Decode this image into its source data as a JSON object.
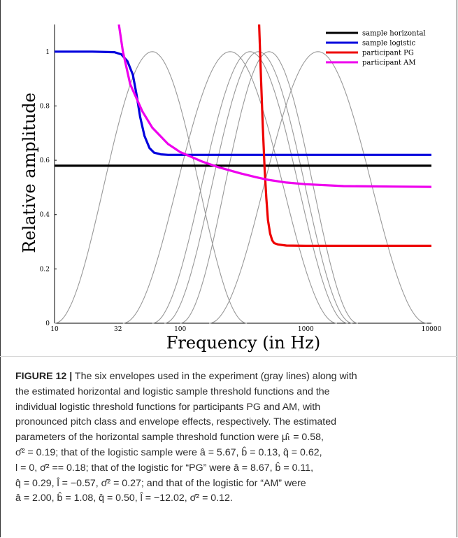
{
  "chart_data": {
    "type": "line",
    "xlabel": "Frequency (in Hz)",
    "ylabel": "Relative amplitude",
    "xscale": "log",
    "xlim": [
      10,
      10000
    ],
    "ylim": [
      0,
      1.1
    ],
    "x_ticks": [
      "10",
      "32",
      "100",
      "1000",
      "10000"
    ],
    "y_ticks": [
      "0",
      "0.2",
      "0.4",
      "0.6",
      "0.8",
      "1"
    ],
    "grid": false,
    "legend_position": "top-right",
    "envelope_color": "#999999",
    "envelopes": [
      {
        "peak_hz": 60,
        "low_hz": 10,
        "high_hz": 340
      },
      {
        "peak_hz": 250,
        "low_hz": 35,
        "high_hz": 1770
      },
      {
        "peak_hz": 360,
        "low_hz": 60,
        "high_hz": 2160
      },
      {
        "peak_hz": 420,
        "low_hz": 75,
        "high_hz": 2350
      },
      {
        "peak_hz": 510,
        "low_hz": 100,
        "high_hz": 2600
      },
      {
        "peak_hz": 1250,
        "low_hz": 170,
        "high_hz": 9200
      }
    ],
    "series": [
      {
        "name": "sample horizontal",
        "color": "#000000",
        "x": [
          10,
          10000
        ],
        "y": [
          0.58,
          0.58
        ]
      },
      {
        "name": "sample logistic",
        "color": "#0000dd",
        "x": [
          10,
          20,
          30,
          34,
          38,
          42,
          45,
          48,
          52,
          57,
          62,
          70,
          80,
          100,
          200,
          1000,
          10000
        ],
        "y": [
          1.0,
          1.0,
          0.998,
          0.99,
          0.965,
          0.915,
          0.84,
          0.76,
          0.69,
          0.645,
          0.628,
          0.622,
          0.62,
          0.62,
          0.62,
          0.62,
          0.62
        ]
      },
      {
        "name": "participant PG",
        "color": "#ee0000",
        "x": [
          425,
          440,
          455,
          470,
          485,
          500,
          520,
          540,
          560,
          600,
          700,
          1000,
          10000
        ],
        "y": [
          1.1,
          0.9,
          0.72,
          0.57,
          0.46,
          0.38,
          0.33,
          0.305,
          0.295,
          0.29,
          0.286,
          0.285,
          0.285
        ]
      },
      {
        "name": "participant AM",
        "color": "#ee00ee",
        "x": [
          32.5,
          35,
          40,
          50,
          60,
          80,
          100,
          150,
          200,
          300,
          400,
          500,
          700,
          1000,
          2000,
          5000,
          10000
        ],
        "y": [
          1.1,
          1.0,
          0.88,
          0.78,
          0.72,
          0.66,
          0.63,
          0.595,
          0.575,
          0.552,
          0.538,
          0.528,
          0.518,
          0.512,
          0.505,
          0.503,
          0.502
        ]
      }
    ]
  },
  "caption": {
    "label": "FIGURE 12 |",
    "lines": [
      " The six envelopes used in the experiment (gray lines) along with",
      "the estimated horizontal and logistic sample threshold functions and the",
      "individual logistic threshold functions for participants PG and AM, with",
      "pronounced pitch class and envelope effects, respectively. The estimated",
      "parameters of the horizontal sample threshold function were μ̂ₜ = 0.58,",
      "σ̂² = 0.19; that of the logistic sample were â = 5.67, b̂ = 0.13, q̂ = 0.62,",
      "l = 0, σ̂² == 0.18; that of the logistic for “PG” were â = 8.67, b̂ = 0.11,",
      "q̂ = 0.29, l̂ = −0.57, σ̂² = 0.27; and that of the logistic for “AM” were",
      "â = 2.00, b̂ = 1.08, q̂ = 0.50, l̂ = −12.02, σ̂² = 0.12."
    ]
  }
}
